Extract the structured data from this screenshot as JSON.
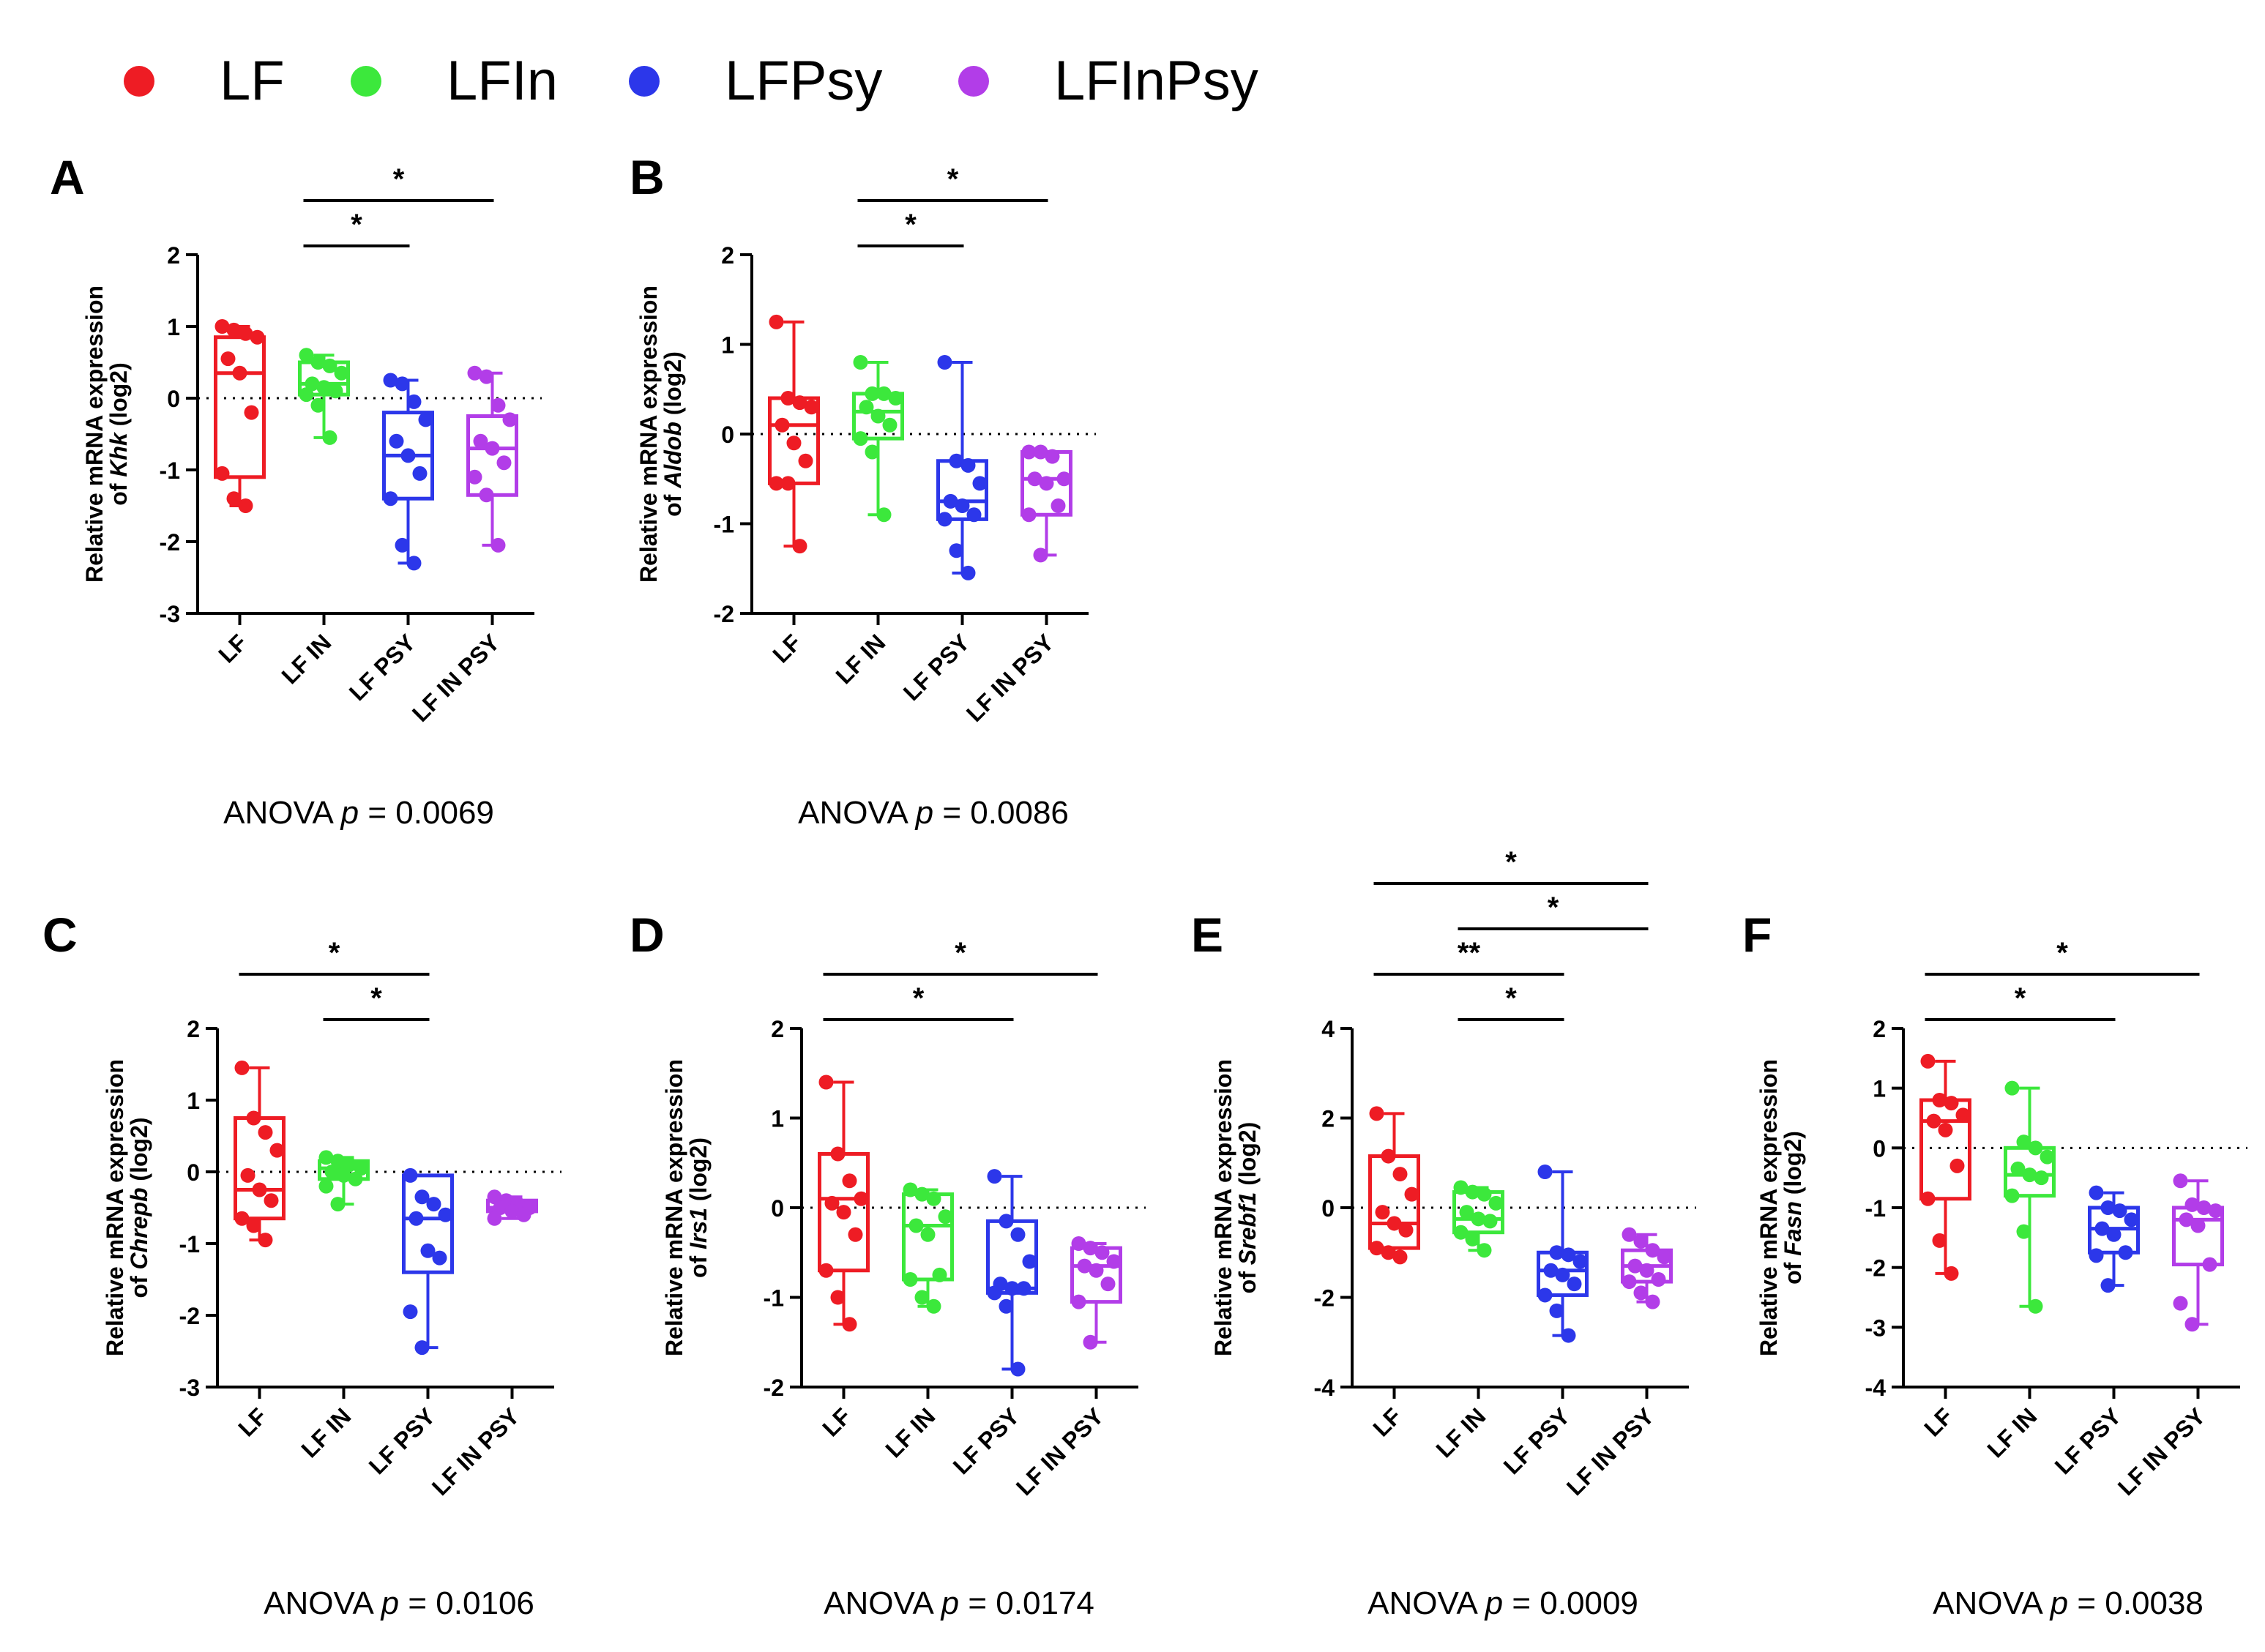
{
  "legend": [
    {
      "label": "LF",
      "color": "#ee1c24"
    },
    {
      "label": "LFIn",
      "color": "#3ce83c"
    },
    {
      "label": "LFPsy",
      "color": "#2c37ea"
    },
    {
      "label": "LFInPsy",
      "color": "#b23de8"
    }
  ],
  "group_colors": [
    "#ee1c24",
    "#3ce83c",
    "#2c37ea",
    "#b23de8"
  ],
  "anova_prefix": "ANOVA ",
  "anova_p": "p",
  "chart_data": [
    {
      "type": "box",
      "panel": "A",
      "ylabel_line1": "Relative mRNA expression",
      "ylabel_of": "of ",
      "gene": "Khk",
      "ylabel_suffix": " (log2)",
      "categories": [
        "LF",
        "LF IN",
        "LF PSY",
        "LF IN PSY"
      ],
      "ylim": [
        -3,
        2
      ],
      "yticks": [
        2,
        1,
        0,
        -1,
        -2,
        -3
      ],
      "series": [
        {
          "name": "LF",
          "min": -1.5,
          "q1": -1.1,
          "median": 0.35,
          "q3": 0.85,
          "max": 1.0,
          "points": [
            1.0,
            0.95,
            0.9,
            0.85,
            0.55,
            0.35,
            -0.2,
            -1.05,
            -1.4,
            -1.5
          ]
        },
        {
          "name": "LF IN",
          "min": -0.55,
          "q1": 0.05,
          "median": 0.2,
          "q3": 0.5,
          "max": 0.6,
          "points": [
            0.6,
            0.5,
            0.45,
            0.35,
            0.2,
            0.15,
            0.1,
            0.05,
            -0.1,
            -0.55
          ]
        },
        {
          "name": "LF PSY",
          "min": -2.3,
          "q1": -1.4,
          "median": -0.8,
          "q3": -0.2,
          "max": 0.25,
          "points": [
            0.25,
            0.2,
            -0.05,
            -0.3,
            -0.6,
            -0.8,
            -1.05,
            -1.4,
            -2.05,
            -2.3
          ]
        },
        {
          "name": "LF IN PSY",
          "min": -2.05,
          "q1": -1.35,
          "median": -0.7,
          "q3": -0.25,
          "max": 0.35,
          "points": [
            0.35,
            0.3,
            -0.1,
            -0.3,
            -0.6,
            -0.7,
            -0.9,
            -1.1,
            -1.35,
            -2.05
          ]
        }
      ],
      "significance": [
        {
          "from": 1,
          "to": 2,
          "label": "*",
          "level": 1
        },
        {
          "from": 1,
          "to": 3,
          "label": "*",
          "level": 2
        }
      ],
      "anova_value": " = 0.0069"
    },
    {
      "type": "box",
      "panel": "B",
      "ylabel_line1": "Relative mRNA expression",
      "ylabel_of": "of ",
      "gene": "Aldob",
      "ylabel_suffix": " (log2)",
      "categories": [
        "LF",
        "LF IN",
        "LF PSY",
        "LF IN PSY"
      ],
      "ylim": [
        -2,
        2
      ],
      "yticks": [
        2,
        1,
        0,
        -1,
        -2
      ],
      "series": [
        {
          "name": "LF",
          "min": -1.25,
          "q1": -0.55,
          "median": 0.1,
          "q3": 0.4,
          "max": 1.25,
          "points": [
            1.25,
            0.4,
            0.35,
            0.3,
            0.1,
            -0.1,
            -0.3,
            -0.55,
            -0.55,
            -1.25
          ]
        },
        {
          "name": "LF IN",
          "min": -0.9,
          "q1": -0.05,
          "median": 0.25,
          "q3": 0.45,
          "max": 0.8,
          "points": [
            0.8,
            0.45,
            0.45,
            0.4,
            0.3,
            0.2,
            0.1,
            -0.05,
            -0.2,
            -0.9
          ]
        },
        {
          "name": "LF PSY",
          "min": -1.55,
          "q1": -0.95,
          "median": -0.75,
          "q3": -0.3,
          "max": 0.8,
          "points": [
            0.8,
            -0.3,
            -0.35,
            -0.55,
            -0.75,
            -0.8,
            -0.9,
            -0.95,
            -1.3,
            -1.55
          ]
        },
        {
          "name": "LF IN PSY",
          "min": -1.35,
          "q1": -0.9,
          "median": -0.5,
          "q3": -0.2,
          "max": -0.2,
          "points": [
            -0.2,
            -0.2,
            -0.25,
            -0.5,
            -0.5,
            -0.55,
            -0.8,
            -0.9,
            -1.35
          ]
        }
      ],
      "significance": [
        {
          "from": 1,
          "to": 2,
          "label": "*",
          "level": 1
        },
        {
          "from": 1,
          "to": 3,
          "label": "*",
          "level": 2
        }
      ],
      "anova_value": " = 0.0086"
    },
    {
      "type": "box",
      "panel": "C",
      "ylabel_line1": "Relative mRNA expression",
      "ylabel_of": "of ",
      "gene": "Chrepb",
      "ylabel_suffix": " (log2)",
      "categories": [
        "LF",
        "LF IN",
        "LF PSY",
        "LF IN PSY"
      ],
      "ylim": [
        -3,
        2
      ],
      "yticks": [
        2,
        1,
        0,
        -1,
        -2,
        -3
      ],
      "series": [
        {
          "name": "LF",
          "min": -0.95,
          "q1": -0.65,
          "median": -0.25,
          "q3": 0.75,
          "max": 1.45,
          "points": [
            1.45,
            0.75,
            0.55,
            0.3,
            -0.05,
            -0.25,
            -0.4,
            -0.65,
            -0.75,
            -0.95
          ]
        },
        {
          "name": "LF IN",
          "min": -0.45,
          "q1": -0.1,
          "median": 0.05,
          "q3": 0.15,
          "max": 0.2,
          "points": [
            0.2,
            0.15,
            0.1,
            0.05,
            0.0,
            -0.05,
            -0.1,
            -0.2,
            -0.45
          ]
        },
        {
          "name": "LF PSY",
          "min": -2.45,
          "q1": -1.4,
          "median": -0.65,
          "q3": -0.05,
          "max": -0.05,
          "points": [
            -0.05,
            -0.35,
            -0.45,
            -0.6,
            -0.65,
            -1.1,
            -1.2,
            -1.95,
            -2.45
          ]
        },
        {
          "name": "LF IN PSY",
          "min": -0.65,
          "q1": -0.55,
          "median": -0.5,
          "q3": -0.4,
          "max": -0.35,
          "points": [
            -0.35,
            -0.4,
            -0.45,
            -0.5,
            -0.5,
            -0.55,
            -0.6,
            -0.65
          ]
        }
      ],
      "significance": [
        {
          "from": 1,
          "to": 2,
          "label": "*",
          "level": 1
        },
        {
          "from": 0,
          "to": 2,
          "label": "*",
          "level": 2
        }
      ],
      "anova_value": " = 0.0106"
    },
    {
      "type": "box",
      "panel": "D",
      "ylabel_line1": "Relative mRNA expression",
      "ylabel_of": "of ",
      "gene": "Irs1",
      "ylabel_suffix": " (log2)",
      "categories": [
        "LF",
        "LF IN",
        "LF PSY",
        "LF IN PSY"
      ],
      "ylim": [
        -2,
        2
      ],
      "yticks": [
        2,
        1,
        0,
        -1,
        -2
      ],
      "series": [
        {
          "name": "LF",
          "min": -1.3,
          "q1": -0.7,
          "median": 0.1,
          "q3": 0.6,
          "max": 1.4,
          "points": [
            1.4,
            0.6,
            0.3,
            0.1,
            0.05,
            -0.05,
            -0.3,
            -0.7,
            -1.0,
            -1.3
          ]
        },
        {
          "name": "LF IN",
          "min": -1.1,
          "q1": -0.8,
          "median": -0.2,
          "q3": 0.15,
          "max": 0.2,
          "points": [
            0.2,
            0.15,
            0.1,
            -0.1,
            -0.2,
            -0.3,
            -0.75,
            -0.8,
            -1.0,
            -1.1
          ]
        },
        {
          "name": "LF PSY",
          "min": -1.8,
          "q1": -0.95,
          "median": -0.9,
          "q3": -0.15,
          "max": 0.35,
          "points": [
            0.35,
            -0.15,
            -0.3,
            -0.6,
            -0.85,
            -0.9,
            -0.9,
            -0.95,
            -1.1,
            -1.8
          ]
        },
        {
          "name": "LF IN PSY",
          "min": -1.5,
          "q1": -1.05,
          "median": -0.65,
          "q3": -0.45,
          "max": -0.4,
          "points": [
            -0.4,
            -0.45,
            -0.5,
            -0.6,
            -0.65,
            -0.7,
            -0.85,
            -1.05,
            -1.5
          ]
        }
      ],
      "significance": [
        {
          "from": 0,
          "to": 2,
          "label": "*",
          "level": 1
        },
        {
          "from": 0,
          "to": 3,
          "label": "*",
          "level": 2
        }
      ],
      "anova_value": " = 0.0174"
    },
    {
      "type": "box",
      "panel": "E",
      "ylabel_line1": "Relative mRNA expression",
      "ylabel_of": "of ",
      "gene": "Srebf1",
      "ylabel_suffix": " (log2)",
      "categories": [
        "LF",
        "LF IN",
        "LF PSY",
        "LF IN PSY"
      ],
      "ylim": [
        -4,
        4
      ],
      "yticks": [
        4,
        2,
        0,
        -2,
        -4
      ],
      "series": [
        {
          "name": "LF",
          "min": -1.1,
          "q1": -0.9,
          "median": -0.35,
          "q3": 1.15,
          "max": 2.1,
          "points": [
            2.1,
            1.15,
            0.75,
            0.3,
            -0.1,
            -0.35,
            -0.5,
            -0.9,
            -1.0,
            -1.1
          ]
        },
        {
          "name": "LF IN",
          "min": -0.95,
          "q1": -0.55,
          "median": -0.25,
          "q3": 0.35,
          "max": 0.45,
          "points": [
            0.45,
            0.35,
            0.3,
            0.1,
            -0.1,
            -0.25,
            -0.3,
            -0.55,
            -0.7,
            -0.95
          ]
        },
        {
          "name": "LF PSY",
          "min": -2.85,
          "q1": -1.95,
          "median": -1.4,
          "q3": -1.0,
          "max": 0.8,
          "points": [
            0.8,
            -1.0,
            -1.05,
            -1.2,
            -1.4,
            -1.5,
            -1.7,
            -1.95,
            -2.3,
            -2.85
          ]
        },
        {
          "name": "LF IN PSY",
          "min": -2.1,
          "q1": -1.65,
          "median": -1.3,
          "q3": -0.95,
          "max": -0.6,
          "points": [
            -0.6,
            -0.75,
            -0.95,
            -1.1,
            -1.3,
            -1.4,
            -1.6,
            -1.65,
            -1.9,
            -2.1
          ]
        }
      ],
      "significance": [
        {
          "from": 1,
          "to": 2,
          "label": "*",
          "level": 1
        },
        {
          "from": 0,
          "to": 2,
          "label": "**",
          "level": 2
        },
        {
          "from": 1,
          "to": 3,
          "label": "*",
          "level": 3
        },
        {
          "from": 0,
          "to": 3,
          "label": "*",
          "level": 4
        }
      ],
      "anova_value": " = 0.0009"
    },
    {
      "type": "box",
      "panel": "F",
      "ylabel_line1": "Relative mRNA expression",
      "ylabel_of": "of ",
      "gene": "Fasn",
      "ylabel_suffix": " (log2)",
      "categories": [
        "LF",
        "LF IN",
        "LF PSY",
        "LF IN PSY"
      ],
      "ylim": [
        -4,
        2
      ],
      "yticks": [
        2,
        1,
        0,
        -1,
        -2,
        -3,
        -4
      ],
      "series": [
        {
          "name": "LF",
          "min": -2.1,
          "q1": -0.85,
          "median": 0.45,
          "q3": 0.8,
          "max": 1.45,
          "points": [
            1.45,
            0.8,
            0.75,
            0.55,
            0.45,
            0.3,
            -0.3,
            -0.85,
            -1.55,
            -2.1
          ]
        },
        {
          "name": "LF IN",
          "min": -2.65,
          "q1": -0.8,
          "median": -0.45,
          "q3": 0.0,
          "max": 1.0,
          "points": [
            1.0,
            0.1,
            0.0,
            -0.15,
            -0.35,
            -0.45,
            -0.5,
            -0.8,
            -1.4,
            -2.65
          ]
        },
        {
          "name": "LF PSY",
          "min": -2.3,
          "q1": -1.75,
          "median": -1.35,
          "q3": -1.0,
          "max": -0.75,
          "points": [
            -0.75,
            -1.0,
            -1.05,
            -1.2,
            -1.35,
            -1.45,
            -1.75,
            -1.8,
            -2.3
          ]
        },
        {
          "name": "LF IN PSY",
          "min": -2.95,
          "q1": -1.95,
          "median": -1.2,
          "q3": -1.0,
          "max": -0.55,
          "points": [
            -0.55,
            -0.95,
            -1.0,
            -1.05,
            -1.2,
            -1.3,
            -1.95,
            -2.6,
            -2.95
          ]
        }
      ],
      "significance": [
        {
          "from": 0,
          "to": 2,
          "label": "*",
          "level": 1
        },
        {
          "from": 0,
          "to": 3,
          "label": "*",
          "level": 2
        }
      ],
      "anova_value": " = 0.0038"
    }
  ]
}
